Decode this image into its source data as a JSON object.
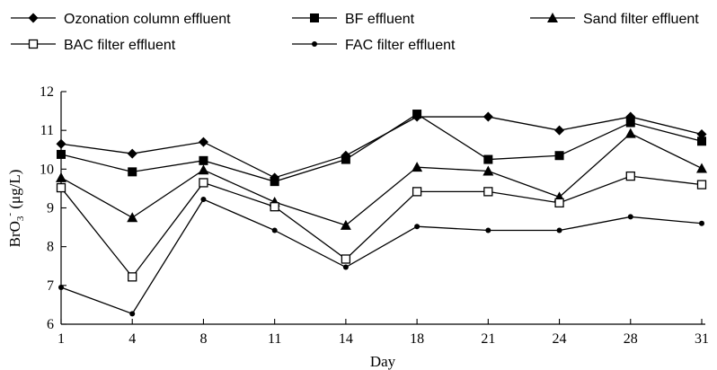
{
  "chart_data": {
    "type": "line",
    "title": "",
    "xlabel": "Day",
    "ylabel": "BrO",
    "ylabel_sub": "3",
    "ylabel_sup": "-",
    "ylabel_unit": " (μg/L)",
    "categories": [
      "1",
      "4",
      "8",
      "11",
      "14",
      "18",
      "21",
      "24",
      "28",
      "31"
    ],
    "ylim": [
      6,
      12
    ],
    "yticks": [
      "6",
      "7",
      "8",
      "9",
      "10",
      "11",
      "12"
    ],
    "grid": false,
    "legend_position": "top",
    "series": [
      {
        "name": "Ozonation column effluent",
        "marker": "diamond",
        "values": [
          10.65,
          10.4,
          10.7,
          9.78,
          10.35,
          11.35,
          11.35,
          11.0,
          11.35,
          10.9
        ]
      },
      {
        "name": "BF effluent",
        "marker": "square-filled",
        "values": [
          10.38,
          9.93,
          10.22,
          9.68,
          10.25,
          11.42,
          10.25,
          10.35,
          11.2,
          10.72
        ]
      },
      {
        "name": "Sand filter effluent",
        "marker": "triangle",
        "values": [
          9.78,
          8.75,
          9.98,
          9.15,
          8.55,
          10.05,
          9.95,
          9.28,
          10.92,
          10.02
        ]
      },
      {
        "name": "BAC filter effluent",
        "marker": "square-open",
        "values": [
          9.52,
          7.22,
          9.65,
          9.03,
          7.68,
          9.42,
          9.42,
          9.13,
          9.82,
          9.6
        ]
      },
      {
        "name": "FAC filter effluent",
        "marker": "dot",
        "values": [
          6.95,
          6.27,
          9.22,
          8.42,
          7.47,
          8.52,
          8.42,
          8.42,
          8.77,
          8.6
        ]
      }
    ]
  }
}
